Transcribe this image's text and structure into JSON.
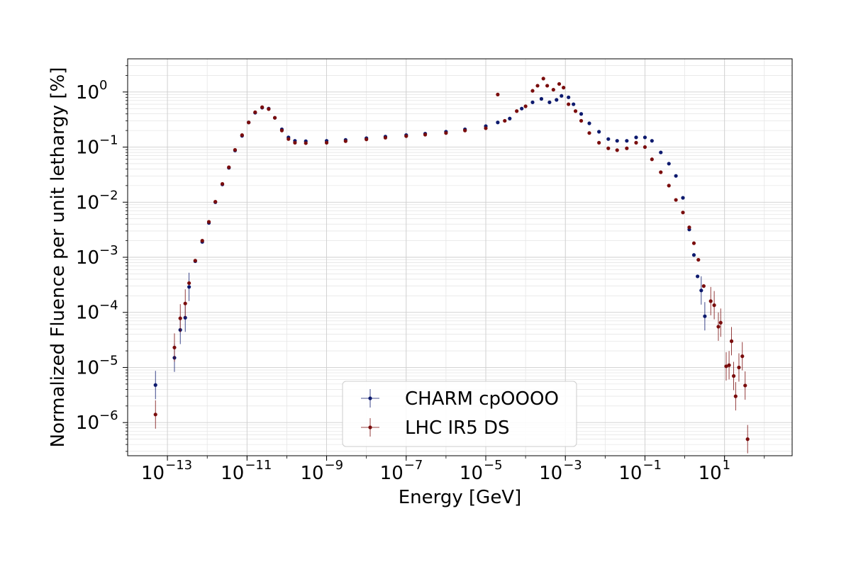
{
  "chart_data": {
    "type": "scatter",
    "title": "",
    "xlabel": "Energy [GeV]",
    "ylabel": "Normalized Fluence per unit lethargy [%]",
    "xscale": "log",
    "yscale": "log",
    "xlim": [
      1e-14,
      500
    ],
    "ylim": [
      2.5e-07,
      4
    ],
    "xtick_labels": [
      "10",
      "10",
      "10",
      "10",
      "10",
      "10",
      "10",
      "10"
    ],
    "xtick_exponents": [
      "−13",
      "−11",
      "−9",
      "−7",
      "−5",
      "−3",
      "−1",
      "1"
    ],
    "xtick_values": [
      1e-13,
      1e-11,
      1e-09,
      1e-07,
      1e-05,
      0.001,
      0.1,
      10
    ],
    "ytick_labels": [
      "10",
      "10",
      "10",
      "10",
      "10",
      "10",
      "10"
    ],
    "ytick_exponents": [
      "−6",
      "−5",
      "−4",
      "−3",
      "−2",
      "−1",
      "0"
    ],
    "ytick_values": [
      1e-06,
      1e-05,
      0.0001,
      0.001,
      0.01,
      0.1,
      1
    ],
    "grid": true,
    "legend_position": "lower-center",
    "series": [
      {
        "name": "CHARM cpOOOO",
        "color": "#0d1a6e",
        "points": [
          [
            5e-14,
            4.8e-06
          ],
          [
            1.5e-13,
            1.5e-05
          ],
          [
            2.1e-13,
            4.8e-05
          ],
          [
            2.8e-13,
            8e-05
          ],
          [
            3.5e-13,
            0.00029
          ],
          [
            5e-13,
            0.00085
          ],
          [
            7.5e-13,
            0.0019
          ],
          [
            1.1e-12,
            0.0042
          ],
          [
            1.6e-12,
            0.01
          ],
          [
            2.4e-12,
            0.021
          ],
          [
            3.5e-12,
            0.042
          ],
          [
            5e-12,
            0.087
          ],
          [
            7.5e-12,
            0.16
          ],
          [
            1.1e-11,
            0.28
          ],
          [
            1.6e-11,
            0.42
          ],
          [
            2.4e-11,
            0.52
          ],
          [
            3.5e-11,
            0.5
          ],
          [
            5e-11,
            0.34
          ],
          [
            7.5e-11,
            0.21
          ],
          [
            1.1e-10,
            0.15
          ],
          [
            1.6e-10,
            0.13
          ],
          [
            3e-10,
            0.128
          ],
          [
            1e-09,
            0.13
          ],
          [
            3e-09,
            0.135
          ],
          [
            1e-08,
            0.145
          ],
          [
            3e-08,
            0.155
          ],
          [
            1e-07,
            0.165
          ],
          [
            3e-07,
            0.175
          ],
          [
            1e-06,
            0.19
          ],
          [
            3e-06,
            0.21
          ],
          [
            1e-05,
            0.24
          ],
          [
            2e-05,
            0.28
          ],
          [
            4e-05,
            0.33
          ],
          [
            8e-05,
            0.5
          ],
          [
            0.00015,
            0.65
          ],
          [
            0.00025,
            0.75
          ],
          [
            0.0004,
            0.65
          ],
          [
            0.0006,
            0.72
          ],
          [
            0.0008,
            0.85
          ],
          [
            0.0012,
            0.8
          ],
          [
            0.0016,
            0.6
          ],
          [
            0.0025,
            0.4
          ],
          [
            0.004,
            0.27
          ],
          [
            0.007,
            0.19
          ],
          [
            0.012,
            0.14
          ],
          [
            0.02,
            0.13
          ],
          [
            0.035,
            0.13
          ],
          [
            0.06,
            0.15
          ],
          [
            0.1,
            0.15
          ],
          [
            0.15,
            0.13
          ],
          [
            0.25,
            0.08
          ],
          [
            0.4,
            0.05
          ],
          [
            0.6,
            0.03
          ],
          [
            0.9,
            0.012
          ],
          [
            1.3,
            0.0032
          ],
          [
            1.7,
            0.0011
          ],
          [
            2.1,
            0.00045
          ],
          [
            2.6,
            0.00025
          ],
          [
            3.2,
            8.5e-05
          ]
        ]
      },
      {
        "name": "LHC IR5 DS",
        "color": "#7a0d0d",
        "points": [
          [
            5e-14,
            1.4e-06
          ],
          [
            1.5e-13,
            2.3e-05
          ],
          [
            2.1e-13,
            7.8e-05
          ],
          [
            2.8e-13,
            0.000145
          ],
          [
            3.5e-13,
            0.00034
          ],
          [
            5e-13,
            0.00087
          ],
          [
            7.5e-13,
            0.002
          ],
          [
            1.1e-12,
            0.0044
          ],
          [
            1.6e-12,
            0.0102
          ],
          [
            2.4e-12,
            0.0215
          ],
          [
            3.5e-12,
            0.043
          ],
          [
            5e-12,
            0.089
          ],
          [
            7.5e-12,
            0.165
          ],
          [
            1.1e-11,
            0.28
          ],
          [
            1.6e-11,
            0.43
          ],
          [
            2.4e-11,
            0.53
          ],
          [
            3.5e-11,
            0.49
          ],
          [
            5e-11,
            0.34
          ],
          [
            7.5e-11,
            0.2
          ],
          [
            1.1e-10,
            0.14
          ],
          [
            1.6e-10,
            0.12
          ],
          [
            3e-10,
            0.118
          ],
          [
            1e-09,
            0.12
          ],
          [
            3e-09,
            0.128
          ],
          [
            1e-08,
            0.138
          ],
          [
            3e-08,
            0.148
          ],
          [
            1e-07,
            0.158
          ],
          [
            3e-07,
            0.168
          ],
          [
            1e-06,
            0.18
          ],
          [
            3e-06,
            0.2
          ],
          [
            1e-05,
            0.22
          ],
          [
            2e-05,
            0.9
          ],
          [
            3e-05,
            0.3
          ],
          [
            6e-05,
            0.45
          ],
          [
            0.0001,
            0.55
          ],
          [
            0.00015,
            1.05
          ],
          [
            0.0002,
            1.3
          ],
          [
            0.00028,
            1.75
          ],
          [
            0.00035,
            1.3
          ],
          [
            0.0005,
            1.1
          ],
          [
            0.0007,
            1.4
          ],
          [
            0.0009,
            1.2
          ],
          [
            0.0012,
            0.6
          ],
          [
            0.0018,
            0.45
          ],
          [
            0.0025,
            0.3
          ],
          [
            0.004,
            0.18
          ],
          [
            0.007,
            0.12
          ],
          [
            0.012,
            0.095
          ],
          [
            0.02,
            0.088
          ],
          [
            0.035,
            0.095
          ],
          [
            0.06,
            0.12
          ],
          [
            0.1,
            0.1
          ],
          [
            0.15,
            0.06
          ],
          [
            0.25,
            0.035
          ],
          [
            0.4,
            0.02
          ],
          [
            0.6,
            0.011
          ],
          [
            0.9,
            0.0065
          ],
          [
            1.3,
            0.0035
          ],
          [
            1.7,
            0.0018
          ],
          [
            2.2,
            0.0009
          ],
          [
            3,
            0.0003
          ],
          [
            4.5,
            0.00016
          ],
          [
            5.5,
            0.000135
          ],
          [
            7,
            5.5e-05
          ],
          [
            8,
            6.5e-05
          ],
          [
            11,
            1.05e-05
          ],
          [
            13,
            1.1e-05
          ],
          [
            15,
            3e-05
          ],
          [
            17,
            7e-06
          ],
          [
            19,
            3e-06
          ],
          [
            23,
            1e-05
          ],
          [
            28,
            1.6e-05
          ],
          [
            33,
            4.7e-06
          ],
          [
            38,
            5e-07
          ]
        ]
      }
    ]
  }
}
